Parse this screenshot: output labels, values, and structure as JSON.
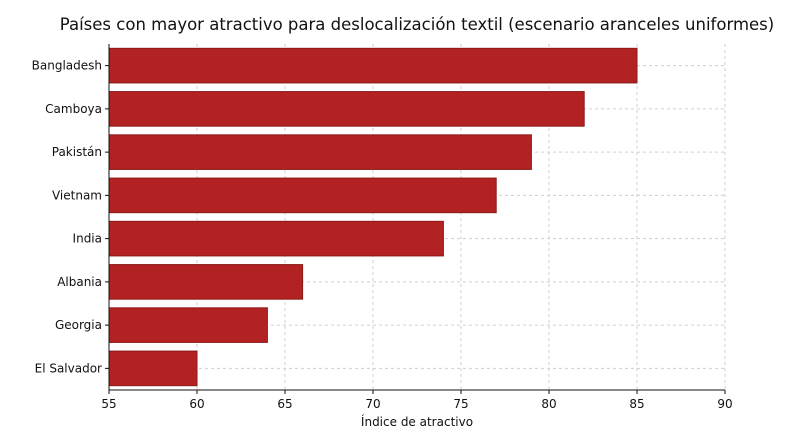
{
  "chart_data": {
    "type": "bar",
    "orientation": "horizontal",
    "title": "Países con mayor atractivo para deslocalización textil (escenario aranceles uniformes)",
    "xlabel": "Índice de atractivo",
    "ylabel": "",
    "categories": [
      "Bangladesh",
      "Camboya",
      "Pakistán",
      "Vietnam",
      "India",
      "Albania",
      "Georgia",
      "El Salvador"
    ],
    "values": [
      85,
      82,
      79,
      77,
      74,
      66,
      64,
      60
    ],
    "xlim": [
      55,
      90
    ],
    "xticks": [
      55,
      60,
      65,
      70,
      75,
      80,
      85,
      90
    ],
    "grid": true,
    "bar_color": "#b22222",
    "bar_edge_color": "#8b1a1a"
  }
}
